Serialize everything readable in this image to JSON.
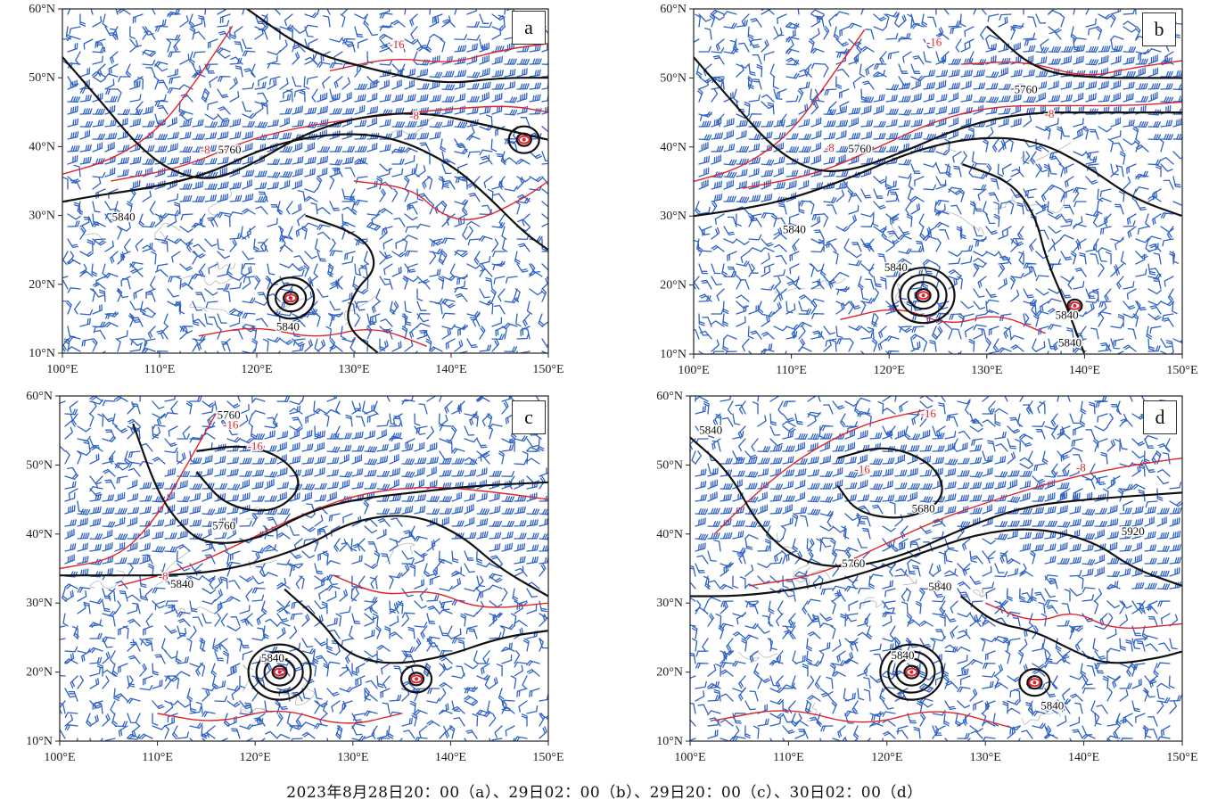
{
  "figure": {
    "caption": "2023年8月28日20：00（a）、29日02：00（b）、29日20：00（c）、30日02：00（d）",
    "colors": {
      "height_contour": "#111111",
      "temp_contour": "#e0242a",
      "wind_barb": "#2f62c4",
      "coast": "#9a9a9a"
    },
    "lon_ticks": [
      "100°E",
      "110°E",
      "120°E",
      "130°E",
      "140°E",
      "150°E"
    ],
    "lat_ticks": [
      "60°N",
      "50°N",
      "40°N",
      "30°N",
      "20°N",
      "10°N"
    ],
    "extent": {
      "lon": [
        100,
        150
      ],
      "lat": [
        10,
        60
      ]
    },
    "panels": [
      {
        "id": "a",
        "label": "a",
        "height_labels": [
          {
            "text": "5760",
            "lon": 117.2,
            "lat": 39.4
          },
          {
            "text": "5840",
            "lon": 106.3,
            "lat": 29.6
          },
          {
            "text": "5840",
            "lon": 123.2,
            "lat": 13.7
          }
        ],
        "temp_labels": [
          {
            "text": "-16",
            "lon": 134.4,
            "lat": 54.7
          },
          {
            "text": "-8",
            "lon": 136.2,
            "lat": 44.3
          },
          {
            "text": "-8",
            "lon": 114.7,
            "lat": 39.4
          }
        ]
      },
      {
        "id": "b",
        "label": "b",
        "height_labels": [
          {
            "text": "5760",
            "lon": 134.0,
            "lat": 48.2
          },
          {
            "text": "5760",
            "lon": 117.0,
            "lat": 39.6
          },
          {
            "text": "5840",
            "lon": 110.3,
            "lat": 27.9
          },
          {
            "text": "5840",
            "lon": 120.7,
            "lat": 22.4
          },
          {
            "text": "5840",
            "lon": 138.2,
            "lat": 15.5
          },
          {
            "text": "5840",
            "lon": 138.5,
            "lat": 11.5
          }
        ],
        "temp_labels": [
          {
            "text": "-16",
            "lon": 124.6,
            "lat": 55.0
          },
          {
            "text": "-8",
            "lon": 136.4,
            "lat": 44.6
          },
          {
            "text": "-8",
            "lon": 113.9,
            "lat": 39.7
          }
        ]
      },
      {
        "id": "c",
        "label": "c",
        "height_labels": [
          {
            "text": "5760",
            "lon": 117.3,
            "lat": 57.1
          },
          {
            "text": "5760",
            "lon": 116.8,
            "lat": 41.1
          },
          {
            "text": "5840",
            "lon": 112.5,
            "lat": 32.6
          },
          {
            "text": "5840",
            "lon": 121.8,
            "lat": 21.9
          }
        ],
        "temp_labels": [
          {
            "text": "-16",
            "lon": 117.5,
            "lat": 55.7
          },
          {
            "text": "-16",
            "lon": 120.0,
            "lat": 52.6
          },
          {
            "text": "-8",
            "lon": 110.6,
            "lat": 33.7
          }
        ]
      },
      {
        "id": "d",
        "label": "d",
        "height_labels": [
          {
            "text": "5840",
            "lon": 102.1,
            "lat": 54.9
          },
          {
            "text": "5680",
            "lon": 123.7,
            "lat": 43.5
          },
          {
            "text": "5760",
            "lon": 116.6,
            "lat": 35.6
          },
          {
            "text": "5840",
            "lon": 125.4,
            "lat": 32.2
          },
          {
            "text": "5920",
            "lon": 145.0,
            "lat": 40.2
          },
          {
            "text": "5840",
            "lon": 121.6,
            "lat": 22.3
          },
          {
            "text": "5840",
            "lon": 136.8,
            "lat": 15.0
          }
        ],
        "temp_labels": [
          {
            "text": "-16",
            "lon": 124.2,
            "lat": 57.3
          },
          {
            "text": "-16",
            "lon": 117.5,
            "lat": 49.2
          },
          {
            "text": "-8",
            "lon": 139.7,
            "lat": 49.5
          }
        ]
      }
    ]
  }
}
